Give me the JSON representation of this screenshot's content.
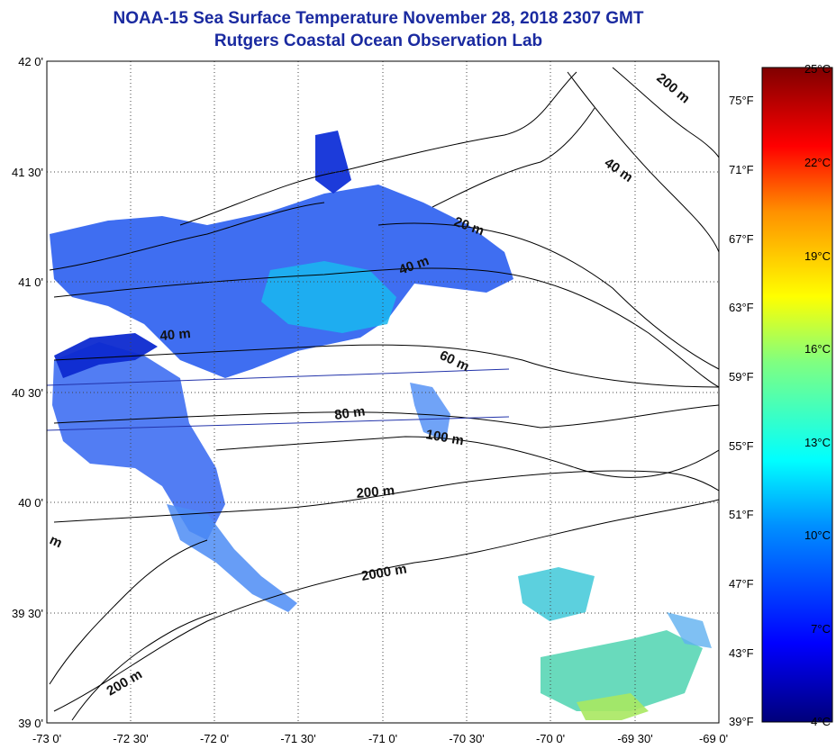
{
  "title": "NOAA-15 Sea Surface Temperature November 28, 2018 2307 GMT",
  "subtitle": "Rutgers Coastal Ocean Observation Lab",
  "map": {
    "lon_range": [
      -73.0,
      -69.0
    ],
    "lat_range": [
      39.0,
      42.0
    ],
    "lon_ticks": [
      "-73 0'",
      "-72 30'",
      "-72 0'",
      "-71 30'",
      "-71 0'",
      "-70 30'",
      "-70 0'",
      "-69 30'",
      "-69 0'"
    ],
    "lat_ticks": [
      "42 0'",
      "41 30'",
      "41 0'",
      "40 30'",
      "40 0'",
      "39 30'",
      "39 0'"
    ],
    "grid": "dotted",
    "contour_labels": [
      "200 m",
      "40 m",
      "20 m",
      "40 m",
      "40 m",
      "60 m",
      "80 m",
      "100 m",
      "200 m",
      "2000 m",
      "200 m",
      "m"
    ]
  },
  "colorbar": {
    "celsius": [
      "25°C",
      "22°C",
      "19°C",
      "16°C",
      "13°C",
      "10°C",
      "7°C",
      "4°C"
    ],
    "fahrenheit": [
      "75°F",
      "71°F",
      "67°F",
      "63°F",
      "59°F",
      "55°F",
      "51°F",
      "47°F",
      "43°F",
      "39°F"
    ],
    "range_c": [
      4,
      25
    ]
  }
}
